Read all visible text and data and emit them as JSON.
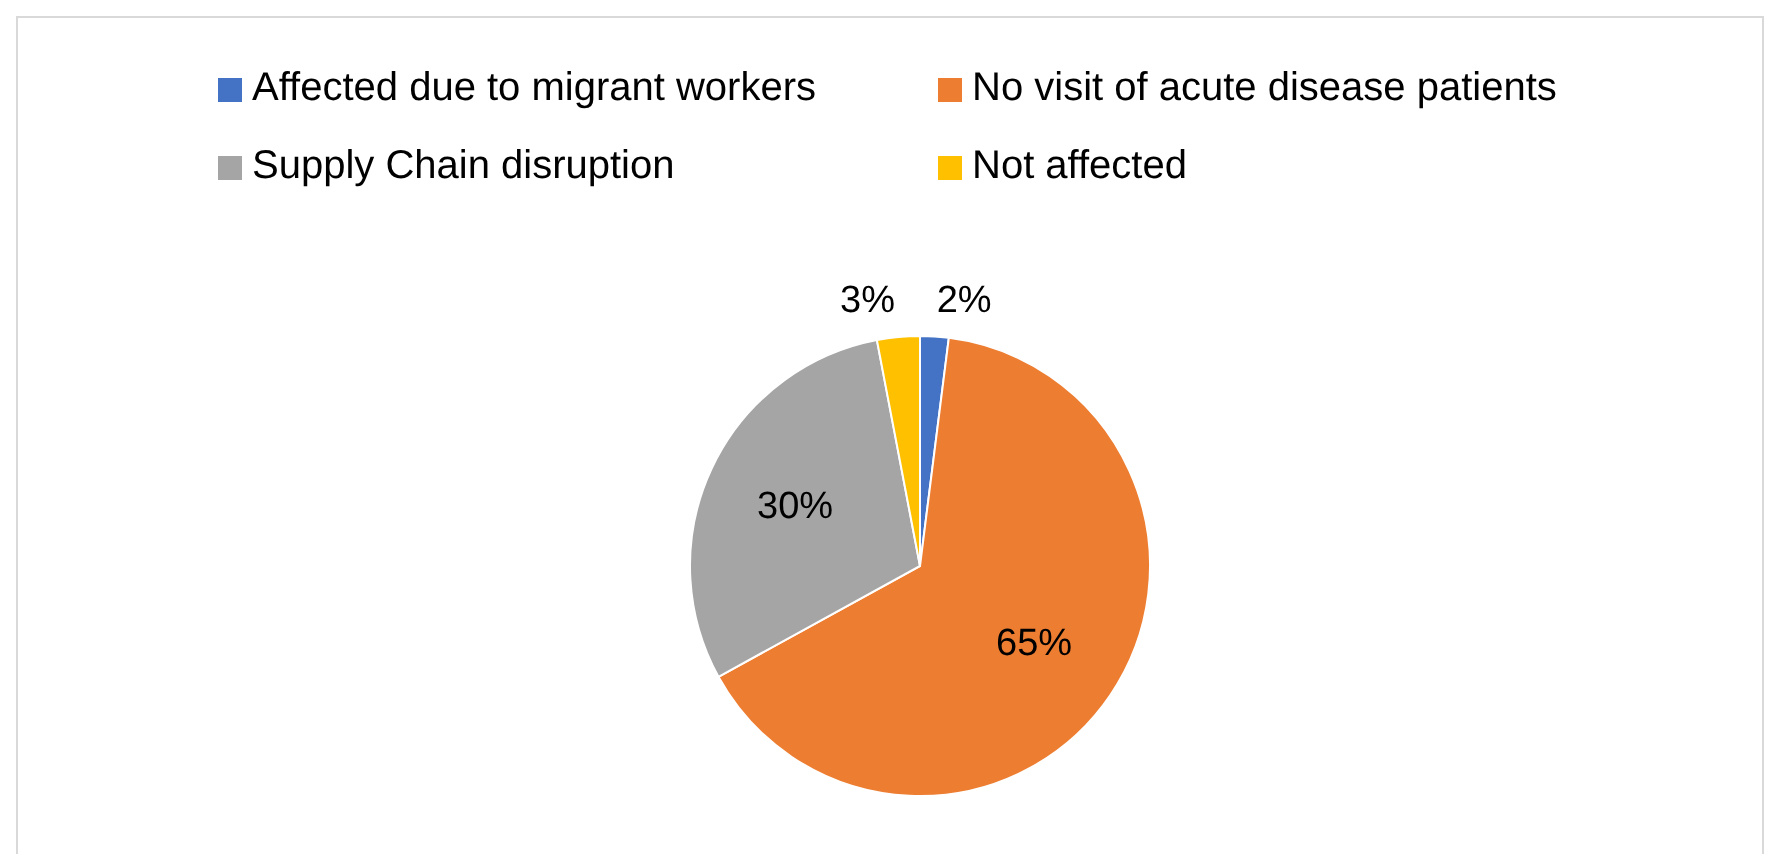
{
  "chart_data": {
    "type": "pie",
    "categories": [
      "Affected due to migrant workers",
      "No visit of acute disease patients",
      "Supply Chain disruption",
      "Not affected"
    ],
    "values": [
      2,
      65,
      30,
      3
    ],
    "colors": [
      "#4472c4",
      "#ed7d31",
      "#a5a5a5",
      "#ffc000"
    ],
    "value_labels": [
      "2%",
      "65%",
      "30%",
      "3%"
    ],
    "legend": "top"
  }
}
